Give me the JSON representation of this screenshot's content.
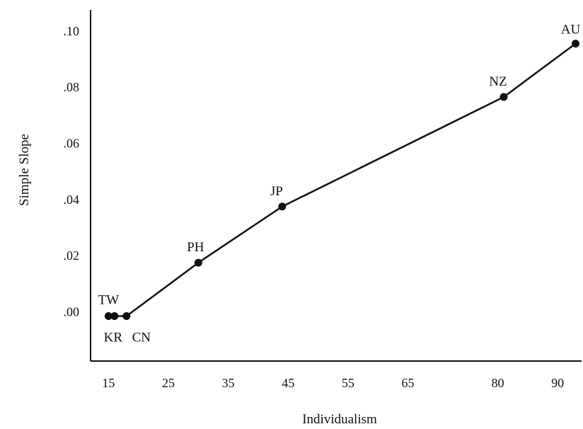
{
  "chart_data": {
    "type": "line",
    "xlabel": "Individualism",
    "ylabel": "Simple Slope",
    "xlim": [
      12,
      94
    ],
    "ylim": [
      -0.0175,
      0.1075
    ],
    "x_ticks": [
      15,
      25,
      35,
      45,
      55,
      65,
      80,
      90
    ],
    "x_tick_labels": [
      "15",
      "25",
      "35",
      "45",
      "55",
      "65",
      "80",
      "90"
    ],
    "y_ticks": [
      0.0,
      0.02,
      0.04,
      0.06,
      0.08,
      0.1
    ],
    "y_tick_labels": [
      ".00",
      ".02",
      ".04",
      ".06",
      ".08",
      ".10"
    ],
    "grid": false,
    "series": [
      {
        "points": [
          {
            "label": "TW",
            "x": 15,
            "y": -0.0015
          },
          {
            "label": "KR",
            "x": 16,
            "y": -0.0015
          },
          {
            "label": "CN",
            "x": 18,
            "y": -0.0015
          },
          {
            "label": "PH",
            "x": 30,
            "y": 0.0175
          },
          {
            "label": "JP",
            "x": 44,
            "y": 0.0375
          },
          {
            "label": "NZ",
            "x": 81,
            "y": 0.0765
          },
          {
            "label": "AU",
            "x": 93,
            "y": 0.0955
          }
        ]
      }
    ]
  }
}
